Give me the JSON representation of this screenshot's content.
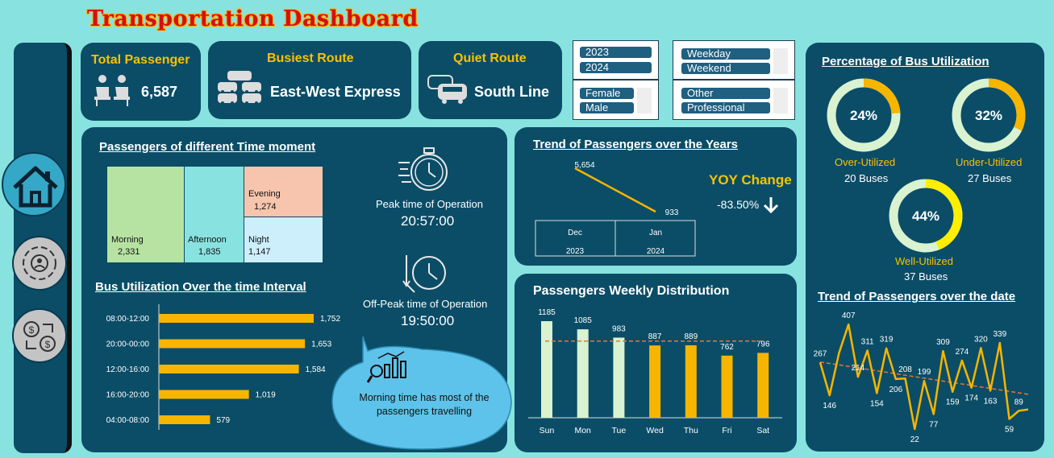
{
  "title": "Transportation Dashboard",
  "kpis": {
    "total_passenger": {
      "label": "Total Passenger",
      "value": "6,587"
    },
    "busiest_route": {
      "label": "Busiest Route",
      "value": "East-West Express"
    },
    "quiet_route": {
      "label": "Quiet Route",
      "value": "South Line"
    }
  },
  "slicers": {
    "year": [
      "2023",
      "2024"
    ],
    "daytype": [
      "Weekday",
      "Weekend"
    ],
    "gender": [
      "Female",
      "Male"
    ],
    "occupation": [
      "Other",
      "Professional"
    ]
  },
  "sidebar": {
    "icons": [
      "home-icon",
      "people-network-icon",
      "money-exchange-icon"
    ]
  },
  "time_moment": {
    "title": "Passengers of different Time moment",
    "cells": [
      {
        "label": "Morning",
        "value": "2,331"
      },
      {
        "label": "Afternoon",
        "value": "1,835"
      },
      {
        "label": "Evening",
        "value": "1,274"
      },
      {
        "label": "Night",
        "value": "1,147"
      }
    ]
  },
  "peak": {
    "label": "Peak time of Operation",
    "value": "20:57:00"
  },
  "offpeak": {
    "label": "Off-Peak time of Operation",
    "value": "19:50:00"
  },
  "callout": "Morning time has most of the passengers travelling",
  "yoy": {
    "label": "YOY Change",
    "value": "-83.50%"
  },
  "utilization": {
    "title": "Percentage of Bus Utilization",
    "donuts": [
      {
        "pct": "24%",
        "fraction": 0.24,
        "label": "Over-Utilized",
        "count": "20 Buses",
        "color": "#f7b500"
      },
      {
        "pct": "32%",
        "fraction": 0.32,
        "label": "Under-Utilized",
        "count": "27 Buses",
        "color": "#f7b500"
      },
      {
        "pct": "44%",
        "fraction": 0.44,
        "label": "Well-Utilized",
        "count": "37 Buses",
        "color": "#ffee00"
      }
    ]
  },
  "chart_data": [
    {
      "id": "bus_util",
      "type": "bar",
      "title": "Bus Utilization Over the time Interval",
      "orientation": "horizontal",
      "categories": [
        "08:00-12:00",
        "20:00-00:00",
        "12:00-16:00",
        "16:00-20:00",
        "04:00-08:00"
      ],
      "values": [
        1752,
        1653,
        1584,
        1019,
        579
      ],
      "labels": [
        "1,752",
        "1,653",
        "1,584",
        "1,019",
        "579"
      ],
      "color": "#f7b500"
    },
    {
      "id": "trend_years",
      "type": "line",
      "title": "Trend of Passengers over the Years",
      "categories": [
        "Dec",
        "Jan"
      ],
      "groups": [
        "2023",
        "2024"
      ],
      "values": [
        5654,
        933
      ],
      "labels": [
        "5,654",
        "933"
      ],
      "color": "#f7b500"
    },
    {
      "id": "weekly",
      "type": "bar",
      "title": "Passengers Weekly Distribution",
      "categories": [
        "Sun",
        "Mon",
        "Tue",
        "Wed",
        "Thu",
        "Fri",
        "Sat"
      ],
      "values": [
        1185,
        1085,
        983,
        887,
        889,
        762,
        796
      ],
      "colors": [
        "#d9f2d0",
        "#d9f2d0",
        "#d9f2d0",
        "#f7b500",
        "#f7b500",
        "#f7b500",
        "#f7b500"
      ],
      "trendline": true
    },
    {
      "id": "trend_date",
      "type": "line",
      "title": "Trend of Passengers over the date",
      "values": [
        267,
        146,
        302,
        407,
        214,
        311,
        154,
        319,
        206,
        208,
        22,
        199,
        77,
        309,
        159,
        274,
        174,
        320,
        163,
        339,
        59,
        89,
        94
      ],
      "point_labels": [
        {
          "i": 0,
          "text": "267",
          "pos": "above"
        },
        {
          "i": 1,
          "text": "146",
          "pos": "below"
        },
        {
          "i": 3,
          "text": "407",
          "pos": "above"
        },
        {
          "i": 4,
          "text": "214",
          "pos": "above"
        },
        {
          "i": 5,
          "text": "311",
          "pos": "above"
        },
        {
          "i": 6,
          "text": "154",
          "pos": "below"
        },
        {
          "i": 7,
          "text": "319",
          "pos": "above"
        },
        {
          "i": 8,
          "text": "206",
          "pos": "below"
        },
        {
          "i": 9,
          "text": "208",
          "pos": "above"
        },
        {
          "i": 10,
          "text": "22",
          "pos": "below"
        },
        {
          "i": 11,
          "text": "199",
          "pos": "above"
        },
        {
          "i": 12,
          "text": "77",
          "pos": "below"
        },
        {
          "i": 13,
          "text": "309",
          "pos": "above"
        },
        {
          "i": 14,
          "text": "159",
          "pos": "below"
        },
        {
          "i": 15,
          "text": "274",
          "pos": "above"
        },
        {
          "i": 16,
          "text": "174",
          "pos": "below"
        },
        {
          "i": 17,
          "text": "320",
          "pos": "above"
        },
        {
          "i": 18,
          "text": "163",
          "pos": "below"
        },
        {
          "i": 19,
          "text": "339",
          "pos": "above"
        },
        {
          "i": 20,
          "text": "59",
          "pos": "below"
        },
        {
          "i": 21,
          "text": "89",
          "pos": "above"
        }
      ],
      "color": "#f7b500",
      "trendline": true
    }
  ]
}
